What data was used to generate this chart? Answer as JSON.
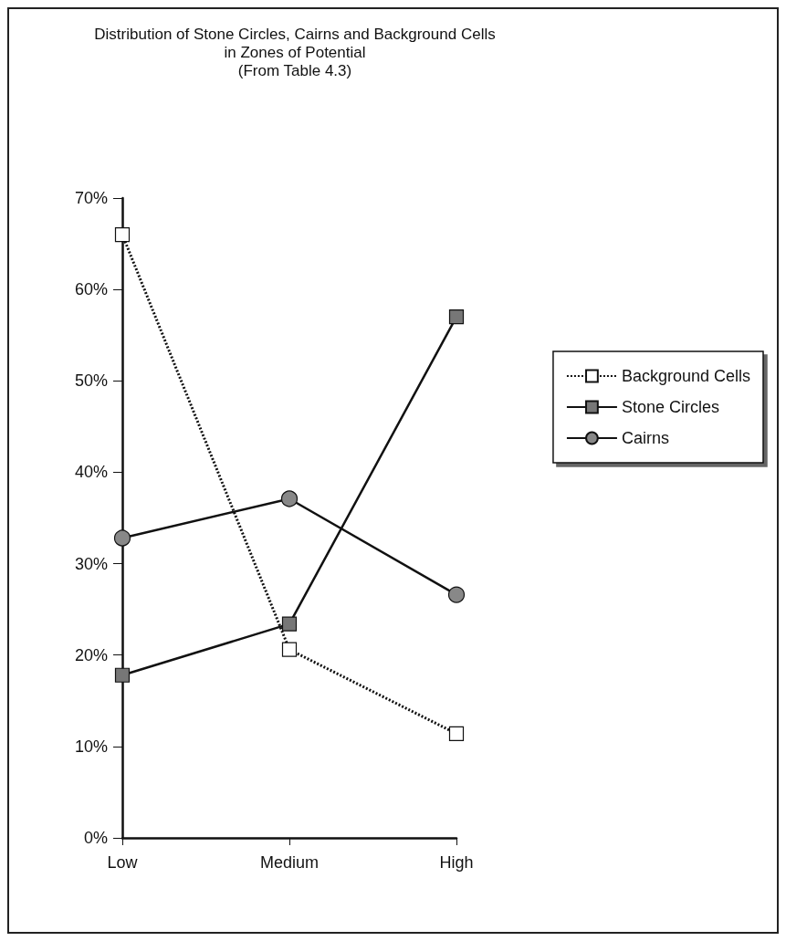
{
  "chart_data": {
    "type": "line",
    "title": "Distribution of Stone Circles, Cairns and Background Cells\nin Zones of Potential",
    "subtitle": "(From Table 4.3)",
    "categories": [
      "Low",
      "Medium",
      "High"
    ],
    "series": [
      {
        "name": "Background Cells",
        "color": "#ffffff",
        "marker": "square",
        "line_style": "dotted",
        "values": [
          66.0,
          20.6,
          11.4
        ]
      },
      {
        "name": "Stone Circles",
        "color": "#777777",
        "marker": "square",
        "line_style": "solid",
        "values": [
          17.8,
          23.4,
          57.0
        ]
      },
      {
        "name": "Cairns",
        "color": "#888888",
        "marker": "circle",
        "line_style": "solid",
        "values": [
          32.8,
          37.1,
          26.6
        ]
      }
    ],
    "ylim": [
      0,
      70
    ],
    "yticks": [
      {
        "value": 0,
        "label": "0%"
      },
      {
        "value": 10,
        "label": "10%"
      },
      {
        "value": 20,
        "label": "20%"
      },
      {
        "value": 30,
        "label": "30%"
      },
      {
        "value": 40,
        "label": "40%"
      },
      {
        "value": 50,
        "label": "50%"
      },
      {
        "value": 60,
        "label": "60%"
      },
      {
        "value": 70,
        "label": "70%"
      }
    ],
    "grid": false,
    "legend": "right"
  }
}
